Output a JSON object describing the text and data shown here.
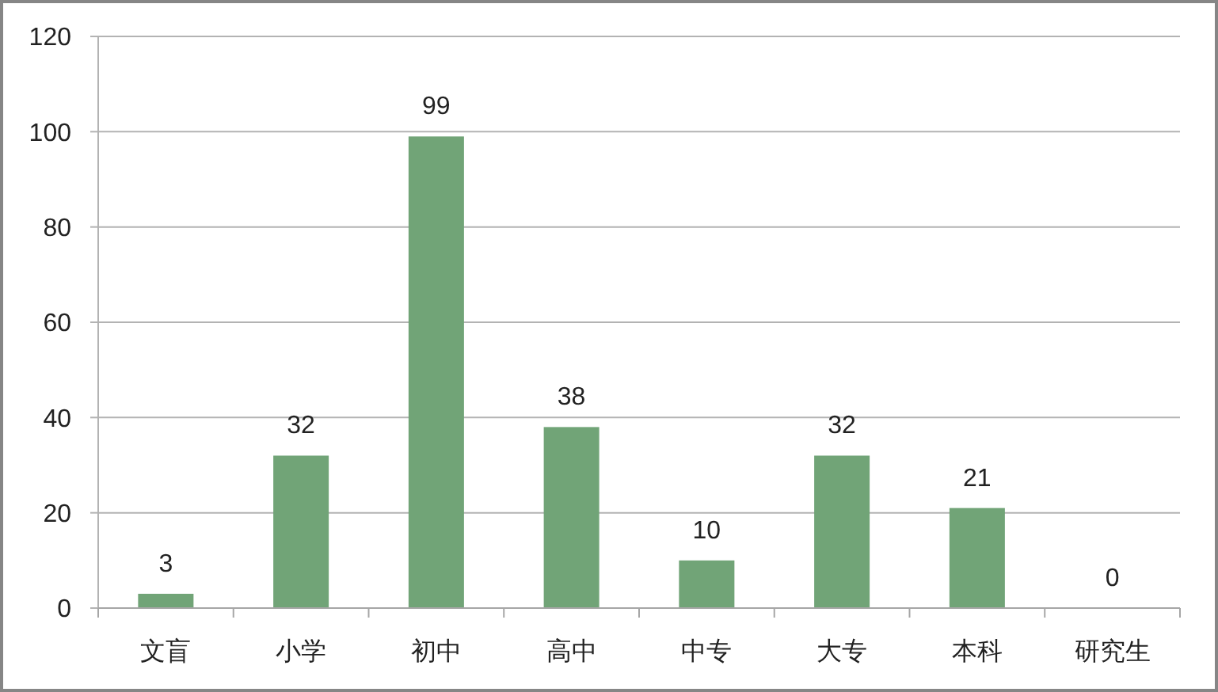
{
  "chart_data": {
    "type": "bar",
    "categories": [
      "文盲",
      "小学",
      "初中",
      "高中",
      "中专",
      "大专",
      "本科",
      "研究生"
    ],
    "values": [
      3,
      32,
      99,
      38,
      10,
      32,
      21,
      0
    ],
    "color": "#71a477",
    "ylim": [
      0,
      120
    ],
    "yticks": [
      0,
      20,
      40,
      60,
      80,
      100,
      120
    ],
    "grid": "y",
    "data_labels": true
  }
}
